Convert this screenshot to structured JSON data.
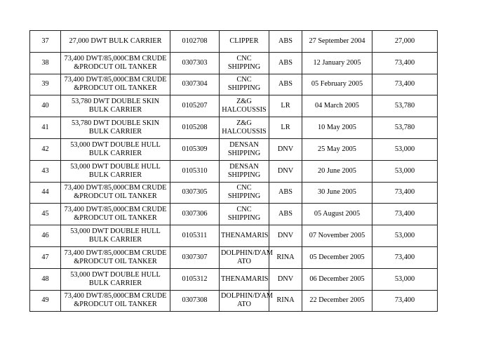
{
  "rows": [
    [
      "37",
      "27,000 DWT BULK CARRIER",
      "0102708",
      "CLIPPER",
      "ABS",
      "27 September 2004",
      "27,000"
    ],
    [
      "38",
      "73,400 DWT/85,000CBM CRUDE &PRODCUT OIL TANKER",
      "0307303",
      "CNC SHIPPING",
      "ABS",
      "12 January 2005",
      "73,400"
    ],
    [
      "39",
      "73,400 DWT/85,000CBM CRUDE &PRODCUT OIL TANKER",
      "0307304",
      "CNC SHIPPING",
      "ABS",
      "05 February 2005",
      "73,400"
    ],
    [
      "40",
      "53,780 DWT DOUBLE SKIN BULK CARRIER",
      "0105207",
      "Z&G HALCOUSSIS",
      "LR",
      "04 March 2005",
      "53,780"
    ],
    [
      "41",
      "53,780 DWT DOUBLE SKIN BULK CARRIER",
      "0105208",
      "Z&G HALCOUSSIS",
      "LR",
      "10 May 2005",
      "53,780"
    ],
    [
      "42",
      "53,000 DWT DOUBLE HULL BULK CARRIER",
      "0105309",
      "DENSAN SHIPPING",
      "DNV",
      "25 May 2005",
      "53,000"
    ],
    [
      "43",
      "53,000 DWT DOUBLE HULL BULK CARRIER",
      "0105310",
      "DENSAN SHIPPING",
      "DNV",
      "20 June 2005",
      "53,000"
    ],
    [
      "44",
      "73,400 DWT/85,000CBM CRUDE &PRODCUT OIL TANKER",
      "0307305",
      "CNC SHIPPING",
      "ABS",
      "30 June 2005",
      "73,400"
    ],
    [
      "45",
      "73,400 DWT/85,000CBM CRUDE &PRODCUT OIL TANKER",
      "0307306",
      "CNC SHIPPING",
      "ABS",
      "05 August 2005",
      "73,400"
    ],
    [
      "46",
      "53,000 DWT DOUBLE HULL BULK CARRIER",
      "0105311",
      "THENAMARIS",
      "DNV",
      "07 November 2005",
      "53,000"
    ],
    [
      "47",
      "73,400 DWT/85,000CBM CRUDE &PRODCUT OIL TANKER",
      "0307307",
      "DOLPHIN/D'AM ATO",
      "RINA",
      "05 December 2005",
      "73,400"
    ],
    [
      "48",
      "53,000 DWT DOUBLE HULL BULK CARRIER",
      "0105312",
      "THENAMARIS",
      "DNV",
      "06 December 2005",
      "53,000"
    ],
    [
      "49",
      "73,400 DWT/85,000CBM CRUDE &PRODCUT OIL TANKER",
      "0307308",
      "DOLPHIN/D'AM ATO",
      "RINA",
      "22 December 2005",
      "73,400"
    ]
  ]
}
